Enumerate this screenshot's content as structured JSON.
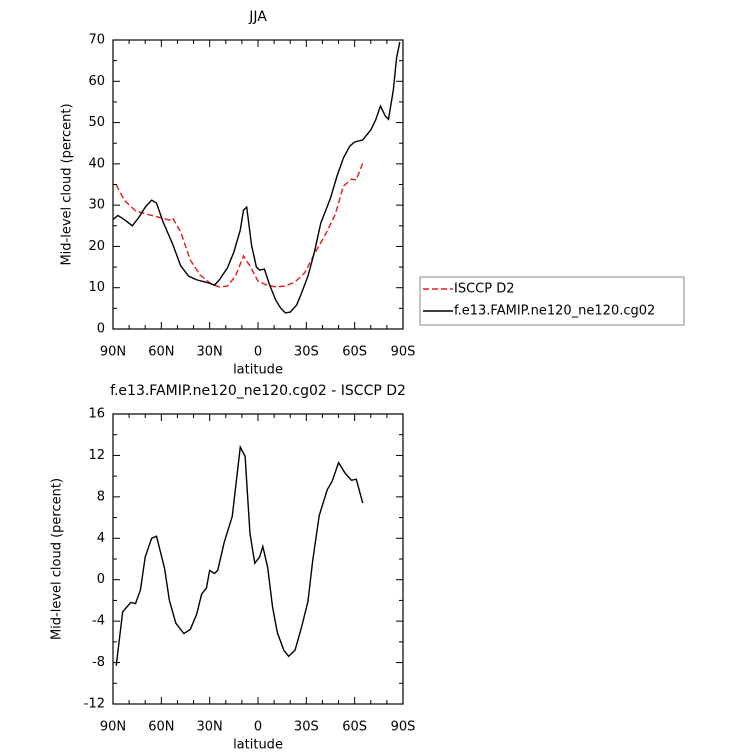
{
  "chart_data": [
    {
      "type": "line",
      "title": "JJA",
      "xlabel": "latitude",
      "ylabel": "Mid-level cloud (percent)",
      "xlim": [
        90,
        -90
      ],
      "xticks": [
        {
          "value": 90,
          "label": "90N"
        },
        {
          "value": 60,
          "label": "60N"
        },
        {
          "value": 30,
          "label": "30N"
        },
        0,
        {
          "value": -30,
          "label": "30S"
        },
        {
          "value": -60,
          "label": "60S"
        },
        {
          "value": -90,
          "label": "90S"
        }
      ],
      "ylim": [
        0,
        70
      ],
      "yticks": [
        0,
        10,
        20,
        30,
        40,
        50,
        60,
        70
      ],
      "legend": "right",
      "series": [
        {
          "name": "ISCCP D2",
          "color": "#e41a1c",
          "dash": true,
          "x": [
            88,
            83,
            76,
            67,
            60,
            55,
            53,
            48,
            42,
            36,
            29,
            24,
            19,
            14,
            9,
            5,
            0,
            -5,
            -11,
            -17,
            -23,
            -29,
            -35,
            -42,
            -48,
            -53,
            -58,
            -61,
            -65
          ],
          "values": [
            34.9,
            31.2,
            28.6,
            27.6,
            26.9,
            26.4,
            26.9,
            23.5,
            16.7,
            13.1,
            10.9,
            10.2,
            10.4,
            12.8,
            17.7,
            15.3,
            11.6,
            10.7,
            10.2,
            10.4,
            11.4,
            13.6,
            18.2,
            23,
            27.8,
            34.6,
            36.3,
            36.1,
            40.2
          ]
        },
        {
          "name": "f.e13.FAMIP.ne120_ne120.cg02",
          "color": "#000000",
          "dash": false,
          "x": [
            90,
            87,
            83,
            78,
            74,
            70,
            66,
            63,
            59,
            53,
            48,
            43,
            38,
            33,
            30,
            27,
            24,
            19,
            15,
            11,
            9,
            7,
            4,
            1,
            -1,
            -4,
            -7,
            -11,
            -14,
            -17,
            -20,
            -24,
            -27,
            -31,
            -35,
            -39,
            -45,
            -49,
            -53,
            -57,
            -60,
            -65,
            -70,
            -73,
            -76,
            -79,
            -81,
            -84,
            -86,
            -88
          ],
          "values": [
            26.5,
            27.5,
            26.5,
            25,
            27,
            29.5,
            31.2,
            30.5,
            26,
            20.6,
            15.3,
            12.8,
            11.9,
            11.4,
            11.1,
            10.6,
            11.9,
            14.8,
            18.6,
            24,
            28.8,
            29.5,
            20.3,
            15,
            14.3,
            14.5,
            10.9,
            7,
            5.1,
            3.9,
            4.1,
            5.8,
            8.7,
            12.8,
            18.6,
            25.7,
            31.7,
            37,
            41.4,
            44.3,
            45.3,
            45.8,
            48.2,
            50.6,
            54,
            51.6,
            50.8,
            57.9,
            65.6,
            69.5
          ]
        }
      ]
    },
    {
      "type": "line",
      "title": "f.e13.FAMIP.ne120_ne120.cg02 - ISCCP D2",
      "xlabel": "latitude",
      "ylabel": "Mid-level cloud (percent)",
      "xlim": [
        90,
        -90
      ],
      "xticks": [
        {
          "value": 90,
          "label": "90N"
        },
        {
          "value": 60,
          "label": "60N"
        },
        {
          "value": 30,
          "label": "30N"
        },
        0,
        {
          "value": -30,
          "label": "30S"
        },
        {
          "value": -60,
          "label": "60S"
        },
        {
          "value": -90,
          "label": "90S"
        }
      ],
      "ylim": [
        -12,
        16
      ],
      "yticks": [
        -12,
        -8,
        -4,
        0,
        4,
        8,
        12,
        16
      ],
      "series": [
        {
          "color": "#000000",
          "x": [
            88,
            84,
            79,
            76,
            73,
            70,
            66,
            63,
            58,
            55,
            51,
            46,
            42,
            38,
            35,
            32,
            30,
            27,
            25,
            21,
            16,
            11,
            8,
            5,
            2,
            -1,
            -3,
            -6,
            -9,
            -12,
            -16,
            -19,
            -23,
            -27,
            -31,
            -34,
            -38,
            -43,
            -46,
            -50,
            -54,
            -58,
            -61,
            -65
          ],
          "values": [
            -8.3,
            -3.1,
            -2.2,
            -2.3,
            -1,
            2.2,
            4,
            4.2,
            1.1,
            -2,
            -4.2,
            -5.2,
            -4.8,
            -3.3,
            -1.4,
            -0.8,
            0.9,
            0.6,
            0.9,
            3.6,
            6.1,
            12.8,
            11.9,
            4.5,
            1.6,
            2.2,
            3.2,
            1.2,
            -2.6,
            -5.1,
            -6.8,
            -7.4,
            -6.8,
            -4.6,
            -2.1,
            1.9,
            6.2,
            8.7,
            9.5,
            11.3,
            10.3,
            9.6,
            9.7,
            7.4
          ]
        }
      ]
    }
  ]
}
